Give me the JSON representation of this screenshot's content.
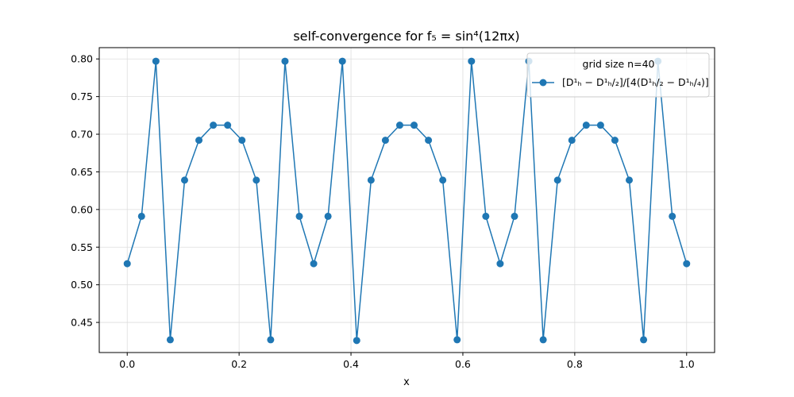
{
  "chart_data": {
    "type": "line",
    "title": "self-convergence for f₅ = sin⁴(12πx)",
    "xlabel": "x",
    "ylabel": "",
    "xlim": [
      -0.05,
      1.05
    ],
    "ylim": [
      0.41,
      0.815
    ],
    "xticks": [
      "0.0",
      "0.2",
      "0.4",
      "0.6",
      "0.8",
      "1.0"
    ],
    "yticks": [
      "0.45",
      "0.50",
      "0.55",
      "0.60",
      "0.65",
      "0.70",
      "0.75",
      "0.80"
    ],
    "grid": true,
    "legend": {
      "placement": "top-right",
      "title": "grid size n=40"
    },
    "series": [
      {
        "name": "[D¹ₕ − D¹ₕ/₂]/[4(D¹ₕ/₂ − D¹ₕ/₄)]",
        "color": "#1f77b4",
        "marker": "circle",
        "x": [
          0,
          0.025641,
          0.051282,
          0.076923,
          0.102564,
          0.128205,
          0.153846,
          0.179487,
          0.205128,
          0.230769,
          0.25641,
          0.282051,
          0.307692,
          0.333333,
          0.358974,
          0.384615,
          0.410256,
          0.435897,
          0.461538,
          0.487179,
          0.512821,
          0.538462,
          0.564103,
          0.589744,
          0.615385,
          0.641026,
          0.666667,
          0.692308,
          0.717949,
          0.74359,
          0.769231,
          0.794872,
          0.820513,
          0.846154,
          0.871795,
          0.897436,
          0.923077,
          0.948718,
          0.974359,
          1.0
        ],
        "y": [
          0.528,
          0.591,
          0.797,
          0.427,
          0.639,
          0.692,
          0.712,
          0.712,
          0.692,
          0.639,
          0.427,
          0.797,
          0.591,
          0.528,
          0.591,
          0.797,
          0.426,
          0.639,
          0.692,
          0.712,
          0.712,
          0.692,
          0.639,
          0.427,
          0.797,
          0.591,
          0.528,
          0.591,
          0.797,
          0.427,
          0.639,
          0.692,
          0.712,
          0.712,
          0.692,
          0.639,
          0.427,
          0.797,
          0.591,
          0.528
        ]
      }
    ]
  }
}
